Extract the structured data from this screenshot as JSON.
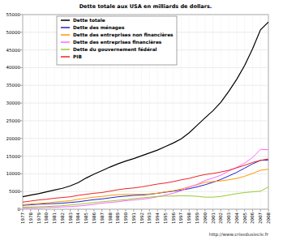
{
  "chart_data": {
    "type": "line",
    "title": "Dette totale aux USA en milliards de dollars.",
    "x": [
      1977,
      1978,
      1979,
      1980,
      1981,
      1982,
      1983,
      1984,
      1985,
      1986,
      1987,
      1988,
      1989,
      1990,
      1991,
      1992,
      1993,
      1994,
      1995,
      1996,
      1997,
      1998,
      1999,
      2000,
      2001,
      2002,
      2003,
      2004,
      2005,
      2006,
      2007,
      2008
    ],
    "xlim": [
      1977,
      2008
    ],
    "xticks": [
      1977,
      1978,
      1979,
      1980,
      1981,
      1982,
      1983,
      1984,
      1985,
      1986,
      1987,
      1988,
      1989,
      1990,
      1991,
      1992,
      1993,
      1994,
      1995,
      1996,
      1997,
      1998,
      1999,
      2000,
      2001,
      2002,
      2003,
      2004,
      2005,
      2006,
      2007,
      2008
    ],
    "ylim": [
      0,
      55000
    ],
    "yticks": [
      0,
      5000,
      10000,
      15000,
      20000,
      25000,
      30000,
      35000,
      40000,
      45000,
      50000,
      55000
    ],
    "grid": true,
    "legend": "upper left",
    "series": [
      {
        "name": "Dette totale",
        "color": "#000000",
        "values": [
          3500,
          4000,
          4400,
          4900,
          5400,
          5900,
          6600,
          7500,
          8800,
          9900,
          10900,
          11900,
          12800,
          13600,
          14300,
          15100,
          15900,
          16700,
          17700,
          18700,
          19900,
          21600,
          23700,
          25800,
          27800,
          30200,
          33300,
          36700,
          40600,
          45300,
          50700,
          52900
        ]
      },
      {
        "name": "Dette des ménages",
        "color": "#2222cc",
        "values": [
          1100,
          1250,
          1400,
          1500,
          1600,
          1700,
          1900,
          2100,
          2400,
          2700,
          2900,
          3200,
          3500,
          3700,
          3900,
          4000,
          4200,
          4500,
          4800,
          5100,
          5400,
          5800,
          6300,
          6900,
          7600,
          8400,
          9400,
          10400,
          11600,
          12800,
          13800,
          13900
        ]
      },
      {
        "name": "Dette des entreprises non financières",
        "color": "#ff9900",
        "values": [
          1300,
          1450,
          1600,
          1800,
          2000,
          2200,
          2400,
          2800,
          3100,
          3400,
          3600,
          3900,
          4100,
          4200,
          4200,
          4200,
          4300,
          4500,
          4900,
          5200,
          5700,
          6300,
          6900,
          7600,
          7800,
          8000,
          8300,
          8700,
          9300,
          10100,
          11000,
          11300
        ]
      },
      {
        "name": "Dette des entreprises financières",
        "color": "#ff66ff",
        "values": [
          300,
          350,
          400,
          500,
          550,
          650,
          750,
          900,
          1100,
          1400,
          1700,
          1900,
          2100,
          2400,
          2600,
          2800,
          3100,
          3500,
          4000,
          4500,
          5200,
          6200,
          7000,
          8100,
          8800,
          9600,
          10800,
          11800,
          13000,
          14600,
          16900,
          16800
        ]
      },
      {
        "name": "Dette du gouvernement fédéral",
        "color": "#99cc33",
        "values": [
          600,
          650,
          700,
          750,
          900,
          1000,
          1200,
          1400,
          1600,
          1900,
          2100,
          2300,
          2500,
          2700,
          3000,
          3200,
          3400,
          3600,
          3700,
          3700,
          3800,
          3750,
          3650,
          3400,
          3400,
          3600,
          4000,
          4400,
          4700,
          4900,
          5100,
          6300
        ]
      },
      {
        "name": "PIB",
        "color": "#ee2222",
        "values": [
          2000,
          2300,
          2600,
          2800,
          3100,
          3300,
          3500,
          3900,
          4200,
          4500,
          4700,
          5100,
          5500,
          5800,
          6000,
          6300,
          6700,
          7100,
          7400,
          7800,
          8300,
          8700,
          9300,
          9800,
          10100,
          10500,
          11000,
          11700,
          12400,
          13200,
          13800,
          14200
        ]
      }
    ],
    "annotations": [
      "http://www.crisedusiecle.fr"
    ]
  }
}
